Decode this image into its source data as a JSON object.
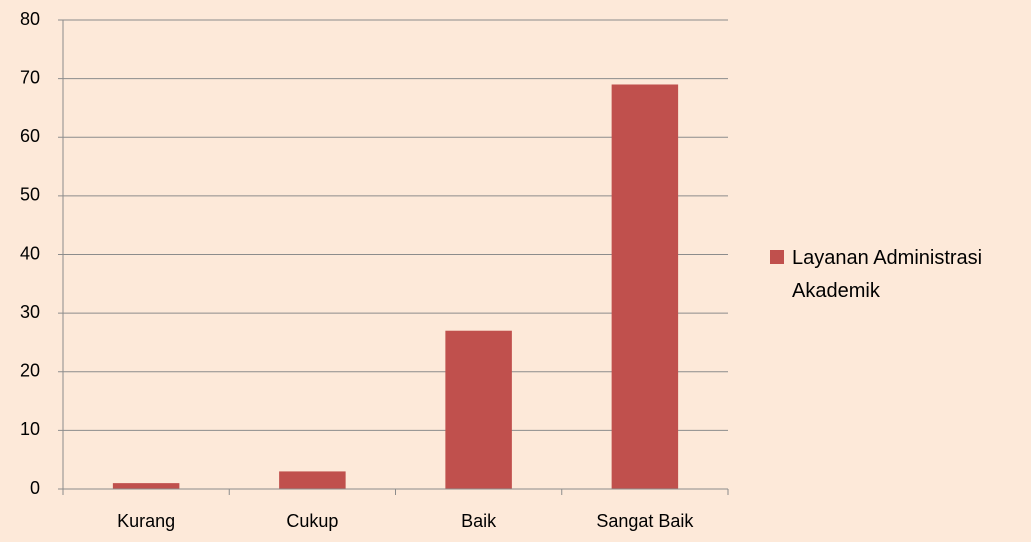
{
  "chart_data": {
    "type": "bar",
    "categories": [
      "Kurang",
      "Cukup",
      "Baik",
      "Sangat Baik"
    ],
    "series": [
      {
        "name": "Layanan Administrasi Akademik",
        "color": "#c0504d",
        "values": [
          1,
          3,
          27,
          69
        ]
      }
    ],
    "ylim": [
      0,
      80
    ],
    "yticks": [
      0,
      10,
      20,
      30,
      40,
      50,
      60,
      70,
      80
    ],
    "grid": true,
    "legend": "right"
  }
}
